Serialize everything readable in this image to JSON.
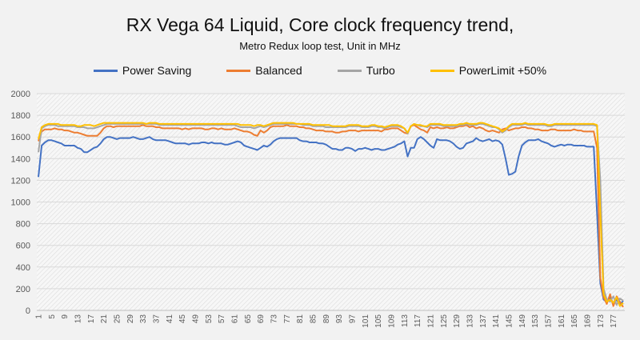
{
  "chart_data": {
    "type": "line",
    "title": "RX Vega 64 Liquid, Core clock frequency trend,",
    "subtitle": "Metro Redux loop test, Unit in MHz",
    "xlabel": "",
    "ylabel": "",
    "ylim": [
      0,
      2000
    ],
    "yticks": [
      0,
      200,
      400,
      600,
      800,
      1000,
      1200,
      1400,
      1600,
      1800,
      2000
    ],
    "x_range": [
      1,
      180
    ],
    "x_tick_step": 4,
    "grid": true,
    "legend_position": "top",
    "series": [
      {
        "name": "Power Saving",
        "color": "#4472c4",
        "values": [
          1230,
          1520,
          1550,
          1570,
          1570,
          1560,
          1550,
          1540,
          1520,
          1520,
          1520,
          1520,
          1500,
          1490,
          1460,
          1460,
          1480,
          1500,
          1510,
          1540,
          1580,
          1600,
          1600,
          1590,
          1580,
          1590,
          1590,
          1590,
          1590,
          1600,
          1590,
          1580,
          1580,
          1590,
          1600,
          1580,
          1570,
          1570,
          1570,
          1570,
          1560,
          1550,
          1540,
          1540,
          1540,
          1540,
          1530,
          1540,
          1540,
          1540,
          1550,
          1550,
          1540,
          1550,
          1540,
          1540,
          1540,
          1530,
          1530,
          1540,
          1550,
          1560,
          1550,
          1520,
          1510,
          1500,
          1490,
          1480,
          1500,
          1520,
          1510,
          1530,
          1560,
          1580,
          1590,
          1590,
          1590,
          1590,
          1590,
          1590,
          1570,
          1560,
          1560,
          1550,
          1550,
          1550,
          1540,
          1540,
          1530,
          1510,
          1490,
          1490,
          1480,
          1480,
          1500,
          1500,
          1490,
          1470,
          1490,
          1490,
          1500,
          1490,
          1480,
          1490,
          1490,
          1480,
          1480,
          1490,
          1500,
          1510,
          1530,
          1540,
          1560,
          1420,
          1500,
          1500,
          1580,
          1600,
          1580,
          1550,
          1520,
          1500,
          1580,
          1570,
          1570,
          1570,
          1560,
          1540,
          1510,
          1490,
          1500,
          1540,
          1550,
          1560,
          1590,
          1570,
          1560,
          1570,
          1580,
          1560,
          1570,
          1560,
          1530,
          1400,
          1250,
          1260,
          1280,
          1420,
          1520,
          1550,
          1570,
          1570,
          1570,
          1580,
          1560,
          1550,
          1540,
          1520,
          1510,
          1520,
          1530,
          1520,
          1530,
          1530,
          1520,
          1520,
          1520,
          1520,
          1510,
          1510,
          1510,
          900,
          250,
          100,
          80,
          120,
          60,
          100,
          50,
          90
        ]
      },
      {
        "name": "Balanced",
        "color": "#ed7d31",
        "values": [
          1560,
          1650,
          1670,
          1670,
          1670,
          1680,
          1670,
          1670,
          1660,
          1660,
          1650,
          1640,
          1640,
          1630,
          1620,
          1610,
          1610,
          1610,
          1610,
          1640,
          1680,
          1700,
          1700,
          1690,
          1700,
          1700,
          1700,
          1700,
          1700,
          1700,
          1700,
          1700,
          1710,
          1700,
          1700,
          1700,
          1690,
          1690,
          1680,
          1680,
          1680,
          1680,
          1680,
          1680,
          1670,
          1680,
          1670,
          1680,
          1680,
          1680,
          1680,
          1670,
          1670,
          1680,
          1680,
          1670,
          1680,
          1670,
          1670,
          1670,
          1680,
          1670,
          1660,
          1650,
          1650,
          1640,
          1620,
          1610,
          1660,
          1640,
          1660,
          1690,
          1700,
          1700,
          1700,
          1700,
          1710,
          1700,
          1700,
          1700,
          1690,
          1690,
          1680,
          1680,
          1670,
          1660,
          1660,
          1660,
          1650,
          1650,
          1650,
          1640,
          1640,
          1650,
          1650,
          1660,
          1660,
          1660,
          1650,
          1660,
          1660,
          1660,
          1660,
          1660,
          1660,
          1650,
          1670,
          1670,
          1680,
          1680,
          1680,
          1660,
          1640,
          1630,
          1700,
          1710,
          1690,
          1670,
          1660,
          1640,
          1690,
          1680,
          1690,
          1680,
          1680,
          1690,
          1680,
          1680,
          1690,
          1700,
          1700,
          1710,
          1690,
          1700,
          1680,
          1690,
          1680,
          1660,
          1650,
          1660,
          1650,
          1640,
          1670,
          1680,
          1660,
          1670,
          1680,
          1680,
          1690,
          1690,
          1680,
          1680,
          1670,
          1670,
          1660,
          1660,
          1660,
          1670,
          1670,
          1660,
          1660,
          1660,
          1660,
          1660,
          1670,
          1660,
          1660,
          1650,
          1650,
          1650,
          1650,
          1500,
          300,
          120,
          60,
          150,
          40,
          130,
          80,
          30
        ]
      },
      {
        "name": "Turbo",
        "color": "#a5a5a5",
        "values": [
          1460,
          1680,
          1700,
          1710,
          1710,
          1710,
          1700,
          1700,
          1700,
          1700,
          1700,
          1700,
          1690,
          1690,
          1690,
          1680,
          1680,
          1680,
          1690,
          1700,
          1710,
          1720,
          1720,
          1720,
          1720,
          1720,
          1720,
          1720,
          1720,
          1720,
          1720,
          1720,
          1720,
          1720,
          1720,
          1720,
          1720,
          1710,
          1710,
          1710,
          1710,
          1710,
          1710,
          1710,
          1710,
          1710,
          1710,
          1710,
          1710,
          1710,
          1710,
          1710,
          1710,
          1710,
          1710,
          1710,
          1710,
          1710,
          1710,
          1710,
          1710,
          1700,
          1690,
          1690,
          1690,
          1690,
          1680,
          1690,
          1700,
          1690,
          1700,
          1710,
          1720,
          1720,
          1720,
          1720,
          1720,
          1720,
          1720,
          1720,
          1720,
          1710,
          1710,
          1710,
          1700,
          1700,
          1700,
          1700,
          1690,
          1690,
          1690,
          1690,
          1690,
          1690,
          1690,
          1700,
          1700,
          1700,
          1700,
          1690,
          1690,
          1690,
          1700,
          1700,
          1690,
          1690,
          1680,
          1690,
          1700,
          1700,
          1700,
          1690,
          1680,
          1630,
          1700,
          1720,
          1710,
          1700,
          1700,
          1690,
          1710,
          1710,
          1710,
          1710,
          1700,
          1700,
          1700,
          1700,
          1700,
          1710,
          1710,
          1720,
          1710,
          1710,
          1710,
          1720,
          1720,
          1710,
          1700,
          1690,
          1690,
          1670,
          1640,
          1660,
          1690,
          1710,
          1710,
          1710,
          1710,
          1720,
          1710,
          1710,
          1710,
          1710,
          1710,
          1710,
          1700,
          1700,
          1710,
          1710,
          1710,
          1710,
          1710,
          1710,
          1710,
          1710,
          1710,
          1710,
          1710,
          1710,
          1710,
          1700,
          1200,
          200,
          100,
          80,
          130,
          50,
          110,
          90
        ]
      },
      {
        "name": "PowerLimit +50%",
        "color": "#ffc000",
        "values": [
          1580,
          1690,
          1710,
          1720,
          1720,
          1720,
          1720,
          1710,
          1710,
          1710,
          1710,
          1710,
          1700,
          1700,
          1710,
          1710,
          1710,
          1700,
          1710,
          1720,
          1730,
          1730,
          1730,
          1730,
          1730,
          1730,
          1730,
          1730,
          1730,
          1730,
          1730,
          1730,
          1730,
          1720,
          1730,
          1730,
          1730,
          1720,
          1720,
          1720,
          1720,
          1720,
          1720,
          1720,
          1720,
          1720,
          1720,
          1720,
          1720,
          1720,
          1720,
          1720,
          1720,
          1720,
          1720,
          1720,
          1720,
          1720,
          1720,
          1720,
          1720,
          1720,
          1710,
          1710,
          1710,
          1710,
          1700,
          1710,
          1710,
          1700,
          1710,
          1720,
          1730,
          1730,
          1730,
          1730,
          1730,
          1730,
          1730,
          1720,
          1720,
          1720,
          1720,
          1720,
          1710,
          1710,
          1710,
          1710,
          1710,
          1710,
          1700,
          1700,
          1700,
          1700,
          1700,
          1710,
          1710,
          1710,
          1710,
          1700,
          1700,
          1700,
          1710,
          1710,
          1700,
          1700,
          1690,
          1700,
          1710,
          1710,
          1710,
          1700,
          1680,
          1640,
          1700,
          1720,
          1710,
          1710,
          1700,
          1700,
          1720,
          1720,
          1720,
          1720,
          1710,
          1710,
          1710,
          1710,
          1710,
          1720,
          1720,
          1730,
          1720,
          1720,
          1720,
          1730,
          1730,
          1720,
          1710,
          1700,
          1690,
          1680,
          1650,
          1670,
          1700,
          1720,
          1720,
          1720,
          1720,
          1730,
          1720,
          1720,
          1720,
          1720,
          1720,
          1720,
          1710,
          1710,
          1720,
          1720,
          1720,
          1720,
          1720,
          1720,
          1720,
          1720,
          1720,
          1720,
          1720,
          1720,
          1720,
          1710,
          900,
          150,
          80,
          100,
          70,
          120,
          40,
          70
        ]
      }
    ]
  }
}
